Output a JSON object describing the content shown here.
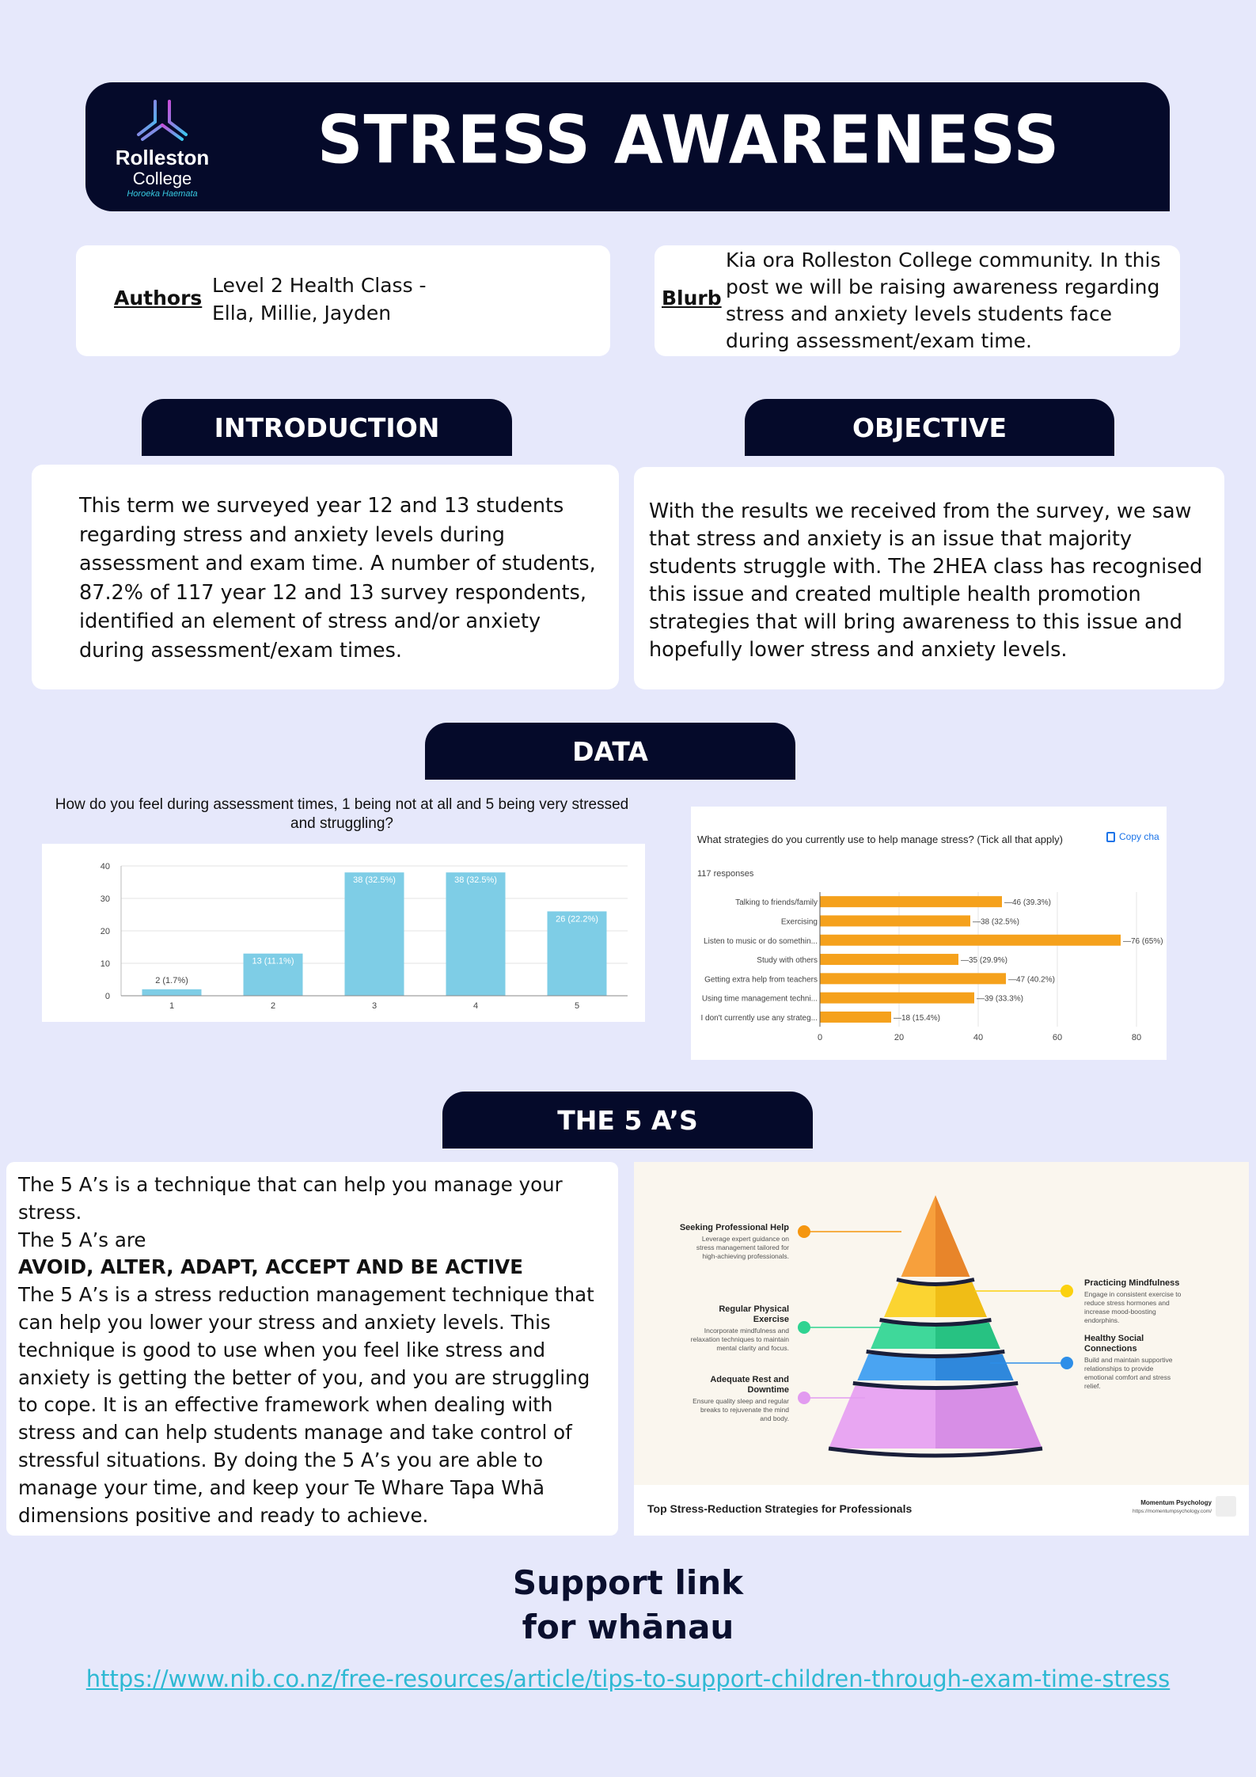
{
  "header": {
    "title": "STRESS AWARENESS",
    "logo_name": "Rolleston",
    "logo_name2": "College",
    "logo_sub": "Horoeka Haemata"
  },
  "authors": {
    "label": "Authors",
    "line1": "Level 2 Health Class -",
    "line2": "Ella, Millie, Jayden"
  },
  "blurb": {
    "label": "Blurb",
    "text": "Kia ora Rolleston College community. In this post we will be raising awareness regarding stress and anxiety levels students face during assessment/exam time."
  },
  "introduction": {
    "heading": "INTRODUCTION",
    "text": "This term we surveyed year 12 and 13 students regarding stress and anxiety levels during assessment and exam time. A number of students, 87.2% of 117 year 12 and 13 survey respondents, identified an element of stress and/or anxiety during assessment/exam times."
  },
  "objective": {
    "heading": "OBJECTIVE",
    "text": "With the results we received from the survey, we saw that stress and anxiety is an issue that majority students struggle with. The 2HEA class has recognised this issue and created multiple health promotion strategies that will bring awareness to this issue and hopefully lower stress and anxiety levels."
  },
  "data_heading": "DATA",
  "chart_data": [
    {
      "type": "bar",
      "title": "How do you feel during assessment times, 1 being not at all and 5 being very stressed and struggling?",
      "categories": [
        "1",
        "2",
        "3",
        "4",
        "5"
      ],
      "values": [
        2,
        13,
        38,
        38,
        26
      ],
      "labels": [
        "2 (1.7%)",
        "13 (11.1%)",
        "38 (32.5%)",
        "38 (32.5%)",
        "26 (22.2%)"
      ],
      "ylim": [
        0,
        40
      ],
      "yticks": [
        0,
        10,
        20,
        30,
        40
      ],
      "color": "#7ecde6",
      "grid": true
    },
    {
      "type": "bar",
      "orientation": "horizontal",
      "title": "What strategies do you currently use to help manage stress? (Tick all that apply)",
      "copy_label": "Copy cha",
      "responses": "117 responses",
      "categories": [
        "Talking to friends/family",
        "Exercising",
        "Listen to music or do somethin...",
        "Study with others",
        "Getting extra help from teachers",
        "Using time management techni...",
        "I don't currently use any strateg..."
      ],
      "values": [
        46,
        38,
        76,
        35,
        47,
        39,
        18
      ],
      "labels": [
        "46 (39.3%)",
        "38 (32.5%)",
        "76 (65%)",
        "35 (29.9%)",
        "47 (40.2%)",
        "39 (33.3%)",
        "18 (15.4%)"
      ],
      "xlim": [
        0,
        80
      ],
      "xticks": [
        0,
        20,
        40,
        60,
        80
      ],
      "color": "#f5a11c",
      "grid": true
    }
  ],
  "five_as": {
    "heading": "THE 5 A’S",
    "p1": "The 5 A’s is a technique that can help you manage your stress.",
    "p2": "The 5 A’s are",
    "bold": "AVOID, ALTER, ADAPT, ACCEPT AND BE ACTIVE",
    "p3": "The 5 A’s is a stress reduction management technique that can help you lower your stress and anxiety levels. This technique is good to use when you feel like stress and anxiety is getting the better of you, and you are struggling to cope. It is an effective framework when dealing with stress and can help students manage and take control of stressful situations. By doing the 5 A’s you are able to manage your time, and keep your Te Whare Tapa Whā dimensions positive and ready to achieve."
  },
  "pyramid": {
    "caption": "Top Stress-Reduction Strategies for Professionals",
    "brand": "Momentum Psychology",
    "brand_url": "https://momentumpsychology.com/",
    "layers": [
      "#f7a03c",
      "#fbd431",
      "#3fd89a",
      "#4aa4f2",
      "#e8a6f2"
    ],
    "left": [
      {
        "title": "Seeking Professional Help",
        "desc": [
          "Leverage expert guidance on",
          "stress management tailored for",
          "high-achieving professionals."
        ],
        "color": "#f5960f"
      },
      {
        "title": "Regular Physical",
        "title2": "Exercise",
        "desc": [
          "Incorporate mindfulness and",
          "relaxation techniques to maintain",
          "mental clarity and focus."
        ],
        "color": "#2fd391"
      },
      {
        "title": "Adequate Rest and",
        "title2": "Downtime",
        "desc": [
          "Ensure quality sleep and regular",
          "breaks to rejuvenate the mind",
          "and body."
        ],
        "color": "#e29bf0"
      }
    ],
    "right": [
      {
        "title": "Practicing Mindfulness",
        "desc": [
          "Engage in consistent exercise to",
          "reduce stress hormones and",
          "increase mood-boosting",
          "endorphins."
        ],
        "color": "#fbd10f"
      },
      {
        "title": "Healthy Social",
        "title2": "Connections",
        "desc": [
          "Build and maintain supportive",
          "relationships to provide",
          "emotional comfort and stress",
          "relief."
        ],
        "color": "#2d8ee8"
      }
    ]
  },
  "support": {
    "line1": "Support link",
    "line2": "for whānau",
    "link": "https://www.nib.co.nz/free-resources/article/tips-to-support-children-through-exam-time-stress"
  }
}
